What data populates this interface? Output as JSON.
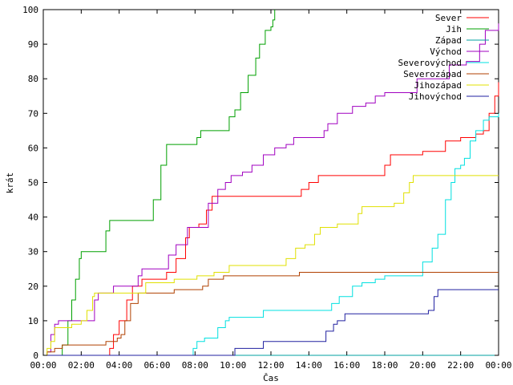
{
  "chart_data": {
    "type": "line",
    "title": "",
    "xlabel": "Čas",
    "ylabel": "krát",
    "xlim": [
      0,
      24
    ],
    "ylim": [
      0,
      100
    ],
    "grid": false,
    "legend_position": "top-right",
    "x_ticks": [
      {
        "value": 0,
        "label": "00:00"
      },
      {
        "value": 2,
        "label": "02:00"
      },
      {
        "value": 4,
        "label": "04:00"
      },
      {
        "value": 6,
        "label": "06:00"
      },
      {
        "value": 8,
        "label": "08:00"
      },
      {
        "value": 10,
        "label": "10:00"
      },
      {
        "value": 12,
        "label": "12:00"
      },
      {
        "value": 14,
        "label": "14:00"
      },
      {
        "value": 16,
        "label": "16:00"
      },
      {
        "value": 18,
        "label": "18:00"
      },
      {
        "value": 20,
        "label": "20:00"
      },
      {
        "value": 22,
        "label": "22:00"
      },
      {
        "value": 24,
        "label": "00:00"
      }
    ],
    "y_ticks": [
      0,
      10,
      20,
      30,
      40,
      50,
      60,
      70,
      80,
      90,
      100
    ],
    "series": [
      {
        "name": "Sever",
        "color": "#ff0000",
        "points": [
          [
            0,
            0
          ],
          [
            3.5,
            0
          ],
          [
            3.5,
            2
          ],
          [
            3.7,
            6
          ],
          [
            4.0,
            10
          ],
          [
            4.4,
            16
          ],
          [
            4.7,
            20
          ],
          [
            5.2,
            22
          ],
          [
            6.5,
            24
          ],
          [
            7.0,
            28
          ],
          [
            7.5,
            34
          ],
          [
            7.7,
            37
          ],
          [
            8.2,
            38
          ],
          [
            8.6,
            42
          ],
          [
            8.9,
            46
          ],
          [
            10.5,
            46
          ],
          [
            11.2,
            46
          ],
          [
            13.5,
            46
          ],
          [
            13.6,
            48
          ],
          [
            14.0,
            50
          ],
          [
            14.5,
            52
          ],
          [
            16.5,
            52
          ],
          [
            17.5,
            52
          ],
          [
            18.0,
            55
          ],
          [
            18.3,
            58
          ],
          [
            19.8,
            58
          ],
          [
            20.0,
            59
          ],
          [
            21.0,
            59
          ],
          [
            21.2,
            62
          ],
          [
            22.0,
            63
          ],
          [
            22.8,
            64
          ],
          [
            23.2,
            65
          ],
          [
            23.5,
            70
          ],
          [
            23.8,
            75
          ],
          [
            24,
            79
          ]
        ]
      },
      {
        "name": "Jih",
        "color": "#00a000",
        "points": [
          [
            0,
            0
          ],
          [
            0.9,
            0
          ],
          [
            1.0,
            3
          ],
          [
            1.3,
            10
          ],
          [
            1.5,
            16
          ],
          [
            1.7,
            22
          ],
          [
            1.9,
            28
          ],
          [
            2.0,
            30
          ],
          [
            2.9,
            30
          ],
          [
            3.3,
            36
          ],
          [
            3.5,
            39
          ],
          [
            5.5,
            39
          ],
          [
            5.8,
            45
          ],
          [
            6.2,
            55
          ],
          [
            6.5,
            61
          ],
          [
            7.9,
            61
          ],
          [
            8.1,
            63
          ],
          [
            8.3,
            65
          ],
          [
            9.5,
            65
          ],
          [
            9.8,
            69
          ],
          [
            10.1,
            71
          ],
          [
            10.4,
            76
          ],
          [
            10.8,
            81
          ],
          [
            11.2,
            86
          ],
          [
            11.4,
            90
          ],
          [
            11.7,
            94
          ],
          [
            12.0,
            95
          ],
          [
            12.1,
            97
          ],
          [
            12.2,
            100
          ]
        ]
      },
      {
        "name": "Západ",
        "color": "#00a0a0",
        "points": [
          [
            0,
            0
          ],
          [
            24,
            0
          ]
        ]
      },
      {
        "name": "Východ",
        "color": "#a000c0",
        "points": [
          [
            0,
            0
          ],
          [
            0.2,
            1
          ],
          [
            0.4,
            6
          ],
          [
            0.6,
            9
          ],
          [
            0.8,
            10
          ],
          [
            2.4,
            10
          ],
          [
            2.7,
            16
          ],
          [
            2.9,
            18
          ],
          [
            3.6,
            18
          ],
          [
            3.7,
            20
          ],
          [
            4.5,
            20
          ],
          [
            5.0,
            23
          ],
          [
            5.2,
            25
          ],
          [
            6.3,
            25
          ],
          [
            6.6,
            29
          ],
          [
            7.0,
            32
          ],
          [
            7.6,
            37
          ],
          [
            8.2,
            37
          ],
          [
            8.7,
            44
          ],
          [
            9.2,
            48
          ],
          [
            9.6,
            50
          ],
          [
            9.9,
            52
          ],
          [
            10.5,
            53
          ],
          [
            11.0,
            55
          ],
          [
            11.6,
            58
          ],
          [
            12.2,
            60
          ],
          [
            12.8,
            61
          ],
          [
            13.2,
            63
          ],
          [
            14.4,
            63
          ],
          [
            14.8,
            65
          ],
          [
            15.0,
            67
          ],
          [
            15.5,
            70
          ],
          [
            16.3,
            72
          ],
          [
            17.0,
            73
          ],
          [
            17.5,
            75
          ],
          [
            18.0,
            76
          ],
          [
            19.5,
            76
          ],
          [
            19.7,
            80
          ],
          [
            21.3,
            80
          ],
          [
            21.4,
            84
          ],
          [
            22.3,
            85
          ],
          [
            23.0,
            90
          ],
          [
            23.3,
            94
          ],
          [
            24,
            96
          ]
        ]
      },
      {
        "name": "Severovýchod",
        "color": "#00e0e0",
        "points": [
          [
            0,
            0
          ],
          [
            7.9,
            0
          ],
          [
            7.9,
            2
          ],
          [
            8.1,
            4
          ],
          [
            8.5,
            5
          ],
          [
            9.2,
            8
          ],
          [
            9.6,
            10
          ],
          [
            9.8,
            11
          ],
          [
            11.4,
            11
          ],
          [
            11.6,
            13
          ],
          [
            15.0,
            13
          ],
          [
            15.2,
            15
          ],
          [
            15.6,
            17
          ],
          [
            16.3,
            20
          ],
          [
            16.8,
            21
          ],
          [
            17.5,
            22
          ],
          [
            18.0,
            23
          ],
          [
            19.9,
            23
          ],
          [
            20.0,
            27
          ],
          [
            20.5,
            31
          ],
          [
            20.8,
            35
          ],
          [
            21.2,
            45
          ],
          [
            21.5,
            50
          ],
          [
            21.7,
            54
          ],
          [
            22.0,
            55
          ],
          [
            22.2,
            57
          ],
          [
            22.5,
            62
          ],
          [
            22.8,
            65
          ],
          [
            23.2,
            68
          ],
          [
            23.5,
            69
          ],
          [
            24,
            70
          ]
        ]
      },
      {
        "name": "Severozápad",
        "color": "#b04000",
        "points": [
          [
            0,
            0
          ],
          [
            0.2,
            1
          ],
          [
            0.6,
            2
          ],
          [
            1.0,
            3
          ],
          [
            3.2,
            3
          ],
          [
            3.3,
            4
          ],
          [
            3.9,
            5
          ],
          [
            4.1,
            6
          ],
          [
            4.3,
            10
          ],
          [
            4.6,
            15
          ],
          [
            5.0,
            18
          ],
          [
            6.5,
            18
          ],
          [
            6.9,
            19
          ],
          [
            8.0,
            19
          ],
          [
            8.4,
            20
          ],
          [
            8.7,
            22
          ],
          [
            9.5,
            23
          ],
          [
            13.0,
            23
          ],
          [
            13.5,
            24
          ],
          [
            24,
            24
          ]
        ]
      },
      {
        "name": "Jihozápad",
        "color": "#e0e000",
        "points": [
          [
            0,
            0
          ],
          [
            0.2,
            2
          ],
          [
            0.4,
            4
          ],
          [
            0.6,
            8
          ],
          [
            1.5,
            9
          ],
          [
            2.0,
            10
          ],
          [
            2.3,
            13
          ],
          [
            2.6,
            17
          ],
          [
            2.7,
            18
          ],
          [
            4.8,
            18
          ],
          [
            5.4,
            21
          ],
          [
            6.7,
            21
          ],
          [
            6.9,
            22
          ],
          [
            7.9,
            22
          ],
          [
            8.1,
            23
          ],
          [
            9.0,
            24
          ],
          [
            9.8,
            26
          ],
          [
            12.1,
            26
          ],
          [
            12.7,
            26
          ],
          [
            12.8,
            28
          ],
          [
            13.3,
            31
          ],
          [
            13.8,
            32
          ],
          [
            14.3,
            35
          ],
          [
            14.6,
            37
          ],
          [
            15.5,
            38
          ],
          [
            16.6,
            41
          ],
          [
            16.8,
            43
          ],
          [
            18.2,
            43
          ],
          [
            18.5,
            44
          ],
          [
            19.0,
            47
          ],
          [
            19.3,
            50
          ],
          [
            19.5,
            52
          ],
          [
            24,
            52
          ]
        ]
      },
      {
        "name": "Jihovýchod",
        "color": "#2020a0",
        "points": [
          [
            0,
            0
          ],
          [
            10.0,
            0
          ],
          [
            10.1,
            2
          ],
          [
            11.5,
            2
          ],
          [
            11.6,
            4
          ],
          [
            14.8,
            4
          ],
          [
            14.9,
            7
          ],
          [
            15.3,
            9
          ],
          [
            15.5,
            10
          ],
          [
            15.9,
            12
          ],
          [
            19.9,
            12
          ],
          [
            20.1,
            12
          ],
          [
            20.3,
            13
          ],
          [
            20.6,
            17
          ],
          [
            20.8,
            19
          ],
          [
            24,
            19
          ]
        ]
      }
    ]
  }
}
